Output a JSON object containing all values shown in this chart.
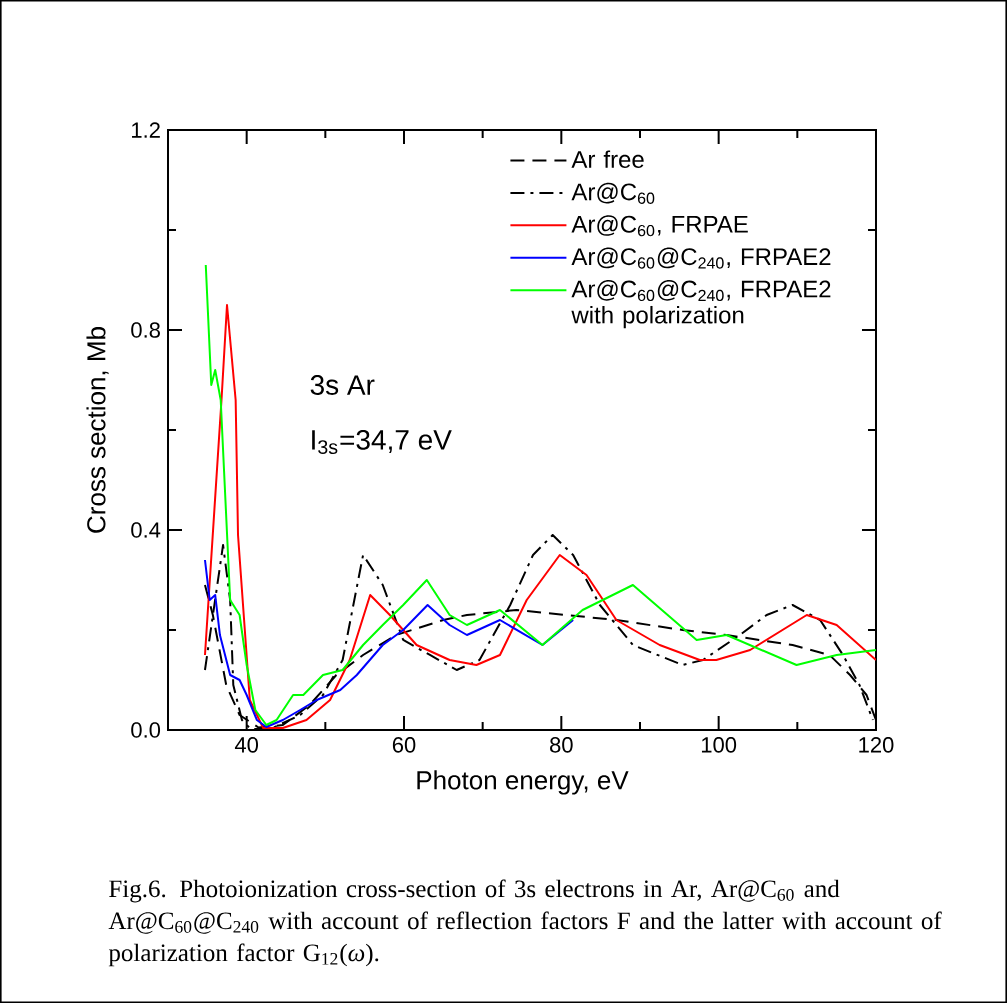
{
  "chart_data": {
    "type": "line",
    "xlabel": "Photon energy, eV",
    "ylabel": "Cross section, Mb",
    "xlim": [
      30,
      120
    ],
    "ylim": [
      0,
      1.2
    ],
    "xticks": [
      40,
      {
        "value": 50,
        "label": null
      },
      60,
      {
        "value": 70,
        "label": null
      },
      80,
      {
        "value": 90,
        "label": null
      },
      100,
      {
        "value": 110,
        "label": null
      },
      120
    ],
    "yticks": [
      {
        "value": 0,
        "label": "0.0"
      },
      {
        "value": 0.2,
        "label": null
      },
      {
        "value": 0.4,
        "label": "0.4"
      },
      {
        "value": 0.6,
        "label": null
      },
      {
        "value": 0.8,
        "label": "0.8"
      },
      {
        "value": 1.0,
        "label": null
      },
      {
        "value": 1.2,
        "label": "1.2"
      }
    ],
    "legend": "top right",
    "grid": false,
    "marker": "none",
    "series": [
      {
        "name": "Ar free",
        "color": "#000000",
        "line_style": "dashed",
        "x": [
          34.7,
          35.7,
          37.4,
          39.1,
          41.5,
          44.6,
          48,
          51.4,
          54.8,
          59,
          65,
          68,
          74.3,
          80.6,
          87,
          95.4,
          101,
          109.4,
          114.1,
          116.7,
          118.8,
          120
        ],
        "values": [
          0.29,
          0.23,
          0.09,
          0.03,
          0.005,
          0.01,
          0.05,
          0.11,
          0.15,
          0.19,
          0.22,
          0.23,
          0.24,
          0.23,
          0.22,
          0.2,
          0.19,
          0.17,
          0.15,
          0.11,
          0.07,
          0.02
        ]
      },
      {
        "name": "Ar@C$_{60}$",
        "color": "#000000",
        "line_style": "dashdot",
        "x": [
          34.7,
          37,
          37.9,
          38.3,
          39.4,
          40.5,
          43,
          46.8,
          49.7,
          52.2,
          54.8,
          57.3,
          59.9,
          63.3,
          66.7,
          69.6,
          73.5,
          76.4,
          78.9,
          81.5,
          84.9,
          89.1,
          95.4,
          98,
          102.7,
          106.1,
          109.4,
          112.9,
          115.8,
          117.9,
          119.6
        ],
        "values": [
          0.12,
          0.37,
          0.26,
          0.09,
          0.02,
          0.002,
          0.002,
          0.03,
          0.07,
          0.14,
          0.35,
          0.29,
          0.18,
          0.15,
          0.12,
          0.14,
          0.25,
          0.35,
          0.39,
          0.35,
          0.25,
          0.17,
          0.13,
          0.14,
          0.19,
          0.23,
          0.25,
          0.22,
          0.15,
          0.09,
          0.02
        ]
      },
      {
        "name": "Ar@C$_{60}$, FRPAE",
        "color": "#ff0000",
        "line_style": "solid",
        "x": [
          34.7,
          36.8,
          37.5,
          38.6,
          38.9,
          40.4,
          42.1,
          44.6,
          47.6,
          50.6,
          53.1,
          55.7,
          58.2,
          61.6,
          65.8,
          69.2,
          72.2,
          75.6,
          79.8,
          83.2,
          87,
          92.5,
          97.6,
          99.7,
          104,
          111.2,
          115,
          120
        ],
        "values": [
          0.15,
          0.66,
          0.85,
          0.66,
          0.39,
          0.06,
          0.004,
          0.004,
          0.02,
          0.06,
          0.14,
          0.27,
          0.23,
          0.17,
          0.14,
          0.13,
          0.15,
          0.26,
          0.35,
          0.31,
          0.22,
          0.17,
          0.14,
          0.14,
          0.16,
          0.23,
          0.21,
          0.14
        ]
      },
      {
        "name": "Ar@C$_{60}$@C$_{240}$, FRPAE2",
        "color": "#0000ff",
        "line_style": "solid",
        "x": [
          34.7,
          35.3,
          36,
          36.6,
          37.9,
          39.1,
          40,
          41.3,
          42.5,
          44.6,
          46.8,
          48.9,
          51.9,
          54,
          57.3,
          59.9,
          63,
          65.8,
          68,
          72.2,
          77.6,
          81.5
        ],
        "values": [
          0.34,
          0.26,
          0.27,
          0.19,
          0.11,
          0.1,
          0.07,
          0.02,
          0.006,
          0.02,
          0.04,
          0.06,
          0.08,
          0.11,
          0.17,
          0.2,
          0.25,
          0.21,
          0.19,
          0.22,
          0.17,
          0.22
        ]
      },
      {
        "name": "Ar@C$_{60}$@C$_{240}$, FRPAE2 with polarization",
        "color": "#00ff00",
        "line_style": "solid",
        "x": [
          34.8,
          35.5,
          36,
          36.7,
          37.9,
          39.1,
          40,
          41.1,
          42.5,
          43.8,
          45.9,
          47.2,
          49.7,
          52.2,
          54.8,
          57.3,
          59.9,
          62.9,
          65.8,
          68,
          72.2,
          77.6,
          82.7,
          89.1,
          97.2,
          101,
          109.9,
          115,
          120
        ],
        "values": [
          0.93,
          0.69,
          0.72,
          0.66,
          0.26,
          0.23,
          0.13,
          0.04,
          0.01,
          0.02,
          0.07,
          0.07,
          0.11,
          0.12,
          0.17,
          0.21,
          0.25,
          0.3,
          0.23,
          0.21,
          0.24,
          0.17,
          0.24,
          0.29,
          0.18,
          0.19,
          0.13,
          0.15,
          0.16
        ]
      }
    ],
    "annotations": [
      "3s Ar",
      "I$_{3s}$=34,7 eV",
      "Fig.6. Photoionization cross-section of 3s electrons in Ar, Ar@C$_{60}$ and Ar@C$_{60}$@C$_{240}$ with account of reflection factors F and the latter with account of polarization factor G$_{12}$(*ω*)."
    ]
  }
}
